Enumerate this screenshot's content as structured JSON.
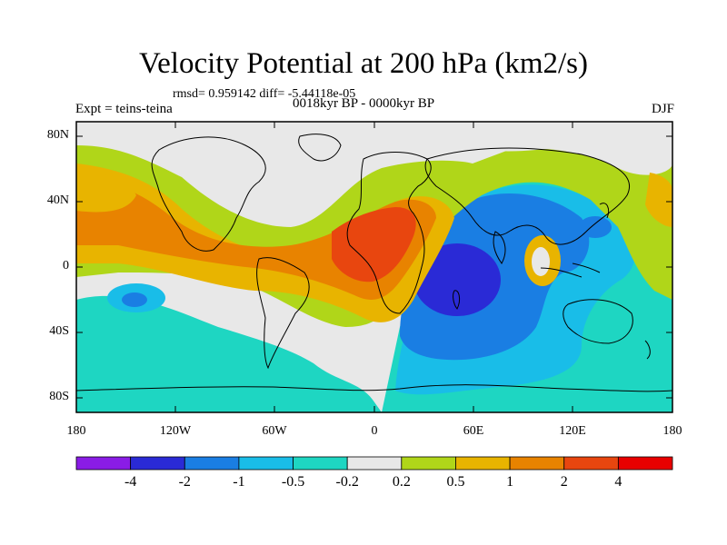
{
  "title": "Velocity Potential at 200 hPa (km2/s)",
  "stats": "rmsd= 0.959142 diff= -5.44118e-05",
  "subtitle": "0018kyr BP - 0000kyr BP",
  "expt": "Expt = teins-teina",
  "season": "DJF",
  "lat_ticks": [
    "80N",
    "40N",
    "0",
    "40S",
    "80S"
  ],
  "lon_ticks": [
    "180",
    "120W",
    "60W",
    "0",
    "60E",
    "120E",
    "180"
  ],
  "colorbar": {
    "levels": [
      "-4",
      "-2",
      "-1",
      "-0.5",
      "-0.2",
      "0.2",
      "0.5",
      "1",
      "2",
      "4"
    ],
    "colors": [
      "#8a1ce6",
      "#2a2ad6",
      "#1a7ee3",
      "#19bde8",
      "#1ed6c2",
      "#e8e8e8",
      "#b0d619",
      "#e8b400",
      "#e88300",
      "#e8460f",
      "#e80000"
    ]
  },
  "map_colors": {
    "background": "#e8e8e8",
    "teal": "#1ed6c2",
    "light_blue": "#19bde8",
    "mid_blue": "#1a7ee3",
    "dark_blue": "#2a2ad6",
    "yellow_green": "#b0d619",
    "gold": "#e8b400",
    "orange": "#e88300",
    "red_orange": "#e8460f",
    "coastline": "#000000"
  }
}
